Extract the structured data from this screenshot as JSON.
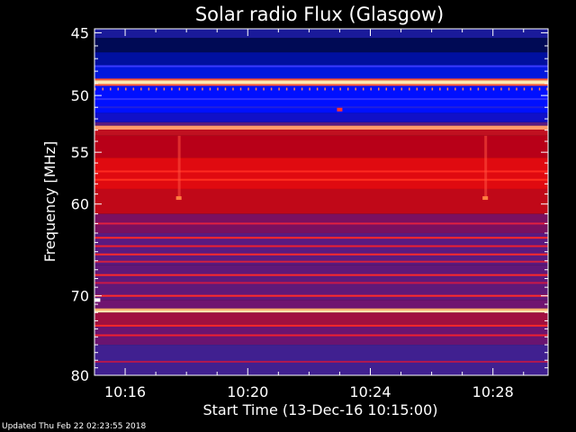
{
  "chart_data": {
    "type": "heatmap",
    "title": "Solar radio Flux (Glasgow)",
    "xlabel": "Start Time (13-Dec-16 10:15:00)",
    "ylabel": "Frequency [MHz]",
    "x_ticks": [
      "10:16",
      "10:20",
      "10:24",
      "10:28"
    ],
    "x_tick_minutes": [
      16,
      20,
      24,
      28
    ],
    "xlim_minutes": [
      15.0,
      29.8
    ],
    "y_ticks": [
      45,
      50,
      55,
      60,
      70,
      80
    ],
    "ylim_mhz": [
      44.7,
      80.0
    ],
    "y_scale": "log",
    "grid": false,
    "legend": "none",
    "bands": [
      {
        "from": 44.7,
        "to": 45.4,
        "color": "#1a1a9a"
      },
      {
        "from": 45.4,
        "to": 46.5,
        "color": "#000a55"
      },
      {
        "from": 46.5,
        "to": 47.5,
        "color": "#0010a0"
      },
      {
        "from": 47.5,
        "to": 48.6,
        "color": "#0018dd"
      },
      {
        "from": 48.6,
        "to": 48.75,
        "color": "#ff5a3c"
      },
      {
        "from": 48.75,
        "to": 49.05,
        "color": "#ffe8b0"
      },
      {
        "from": 49.05,
        "to": 49.2,
        "color": "#ff5a3c"
      },
      {
        "from": 49.2,
        "to": 51.5,
        "color": "#0010ff"
      },
      {
        "from": 51.5,
        "to": 52.3,
        "color": "#1010c8"
      },
      {
        "from": 52.3,
        "to": 52.6,
        "color": "#5a1a80"
      },
      {
        "from": 52.6,
        "to": 52.95,
        "color": "#ff9a6a"
      },
      {
        "from": 52.95,
        "to": 53.5,
        "color": "#c01020"
      },
      {
        "from": 53.5,
        "to": 55.5,
        "color": "#b80018"
      },
      {
        "from": 55.5,
        "to": 58.5,
        "color": "#e00a10"
      },
      {
        "from": 58.5,
        "to": 61.0,
        "color": "#c00818"
      },
      {
        "from": 61.0,
        "to": 63.0,
        "color": "#7a1060"
      },
      {
        "from": 63.0,
        "to": 66.5,
        "color": "#5a1a80"
      },
      {
        "from": 66.5,
        "to": 70.5,
        "color": "#601878"
      },
      {
        "from": 70.5,
        "to": 71.5,
        "color": "#701470"
      },
      {
        "from": 71.5,
        "to": 71.75,
        "color": "#ffb070"
      },
      {
        "from": 71.75,
        "to": 72.0,
        "color": "#ffe8b0"
      },
      {
        "from": 72.0,
        "to": 73.5,
        "color": "#a01040"
      },
      {
        "from": 73.5,
        "to": 76.0,
        "color": "#6a1470"
      },
      {
        "from": 76.0,
        "to": 80.0,
        "color": "#402090"
      }
    ],
    "lines": [
      {
        "mhz": 47.6,
        "color": "#3a3aff"
      },
      {
        "mhz": 50.3,
        "color": "#3030ff"
      },
      {
        "mhz": 51.0,
        "color": "#2020e0"
      },
      {
        "mhz": 56.8,
        "color": "#ff2a20"
      },
      {
        "mhz": 57.6,
        "color": "#ff3020"
      },
      {
        "mhz": 62.0,
        "color": "#e02040"
      },
      {
        "mhz": 63.5,
        "color": "#ff2828"
      },
      {
        "mhz": 64.4,
        "color": "#ee2030"
      },
      {
        "mhz": 65.3,
        "color": "#ff2a2a"
      },
      {
        "mhz": 66.1,
        "color": "#d02040"
      },
      {
        "mhz": 67.6,
        "color": "#ff2828"
      },
      {
        "mhz": 68.5,
        "color": "#c81848"
      },
      {
        "mhz": 70.0,
        "color": "#ff2a2a"
      },
      {
        "mhz": 73.6,
        "color": "#ff2828"
      },
      {
        "mhz": 74.8,
        "color": "#ee2030"
      },
      {
        "mhz": 78.2,
        "color": "#b01850"
      }
    ],
    "spots": [
      {
        "min": 17.75,
        "mhz": 59.4,
        "color": "#ff8040"
      },
      {
        "min": 27.75,
        "mhz": 59.4,
        "color": "#ff8040"
      },
      {
        "min": 23.0,
        "mhz": 51.2,
        "color": "#ff3030"
      },
      {
        "min": 15.1,
        "mhz": 70.5,
        "color": "#ffffff"
      }
    ],
    "streaks": [
      {
        "min": 17.75,
        "from": 53.5,
        "to": 59.4
      },
      {
        "min": 27.75,
        "from": 53.5,
        "to": 59.4
      }
    ]
  },
  "footer": {
    "text": "Updated Thu Feb 22 02:23:55 2018"
  },
  "colors": {
    "axis": "#ffffff",
    "background": "#000000"
  }
}
